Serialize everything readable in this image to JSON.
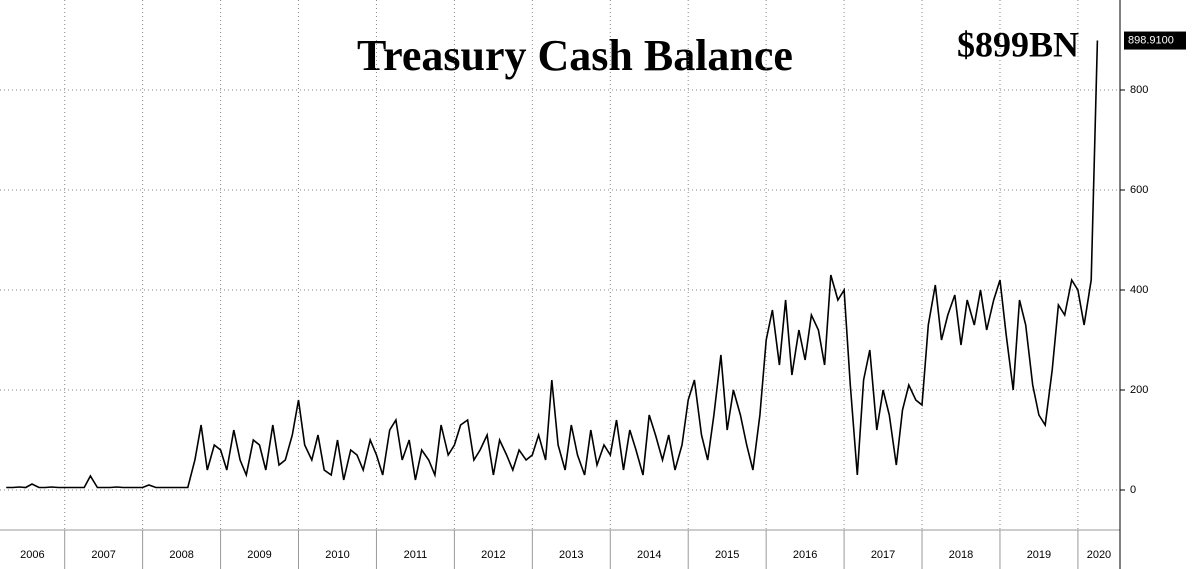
{
  "chart_data": {
    "type": "line",
    "title": "Treasury Cash Balance",
    "annotations": [
      "$899BN"
    ],
    "last_value_label": "898.9100",
    "color": "#000000",
    "grid": true,
    "x": [
      2006.25,
      2006.33,
      2006.42,
      2006.5,
      2006.58,
      2006.67,
      2006.75,
      2006.83,
      2006.92,
      2007,
      2007.08,
      2007.17,
      2007.25,
      2007.33,
      2007.42,
      2007.5,
      2007.58,
      2007.67,
      2007.75,
      2007.83,
      2007.92,
      2008,
      2008.08,
      2008.17,
      2008.25,
      2008.33,
      2008.42,
      2008.5,
      2008.58,
      2008.67,
      2008.75,
      2008.83,
      2008.92,
      2009,
      2009.08,
      2009.17,
      2009.25,
      2009.33,
      2009.42,
      2009.5,
      2009.58,
      2009.67,
      2009.75,
      2009.83,
      2009.92,
      2010,
      2010.08,
      2010.17,
      2010.25,
      2010.33,
      2010.42,
      2010.5,
      2010.58,
      2010.67,
      2010.75,
      2010.83,
      2010.92,
      2011,
      2011.08,
      2011.17,
      2011.25,
      2011.33,
      2011.42,
      2011.5,
      2011.58,
      2011.67,
      2011.75,
      2011.83,
      2011.92,
      2012,
      2012.08,
      2012.17,
      2012.25,
      2012.33,
      2012.42,
      2012.5,
      2012.58,
      2012.67,
      2012.75,
      2012.83,
      2012.92,
      2013,
      2013.08,
      2013.17,
      2013.25,
      2013.33,
      2013.42,
      2013.5,
      2013.58,
      2013.67,
      2013.75,
      2013.83,
      2013.92,
      2014,
      2014.08,
      2014.17,
      2014.25,
      2014.33,
      2014.42,
      2014.5,
      2014.58,
      2014.67,
      2014.75,
      2014.83,
      2014.92,
      2015,
      2015.08,
      2015.17,
      2015.25,
      2015.33,
      2015.42,
      2015.5,
      2015.58,
      2015.67,
      2015.75,
      2015.83,
      2015.92,
      2016,
      2016.08,
      2016.17,
      2016.25,
      2016.33,
      2016.42,
      2016.5,
      2016.58,
      2016.67,
      2016.75,
      2016.83,
      2016.92,
      2017,
      2017.08,
      2017.17,
      2017.25,
      2017.33,
      2017.42,
      2017.5,
      2017.58,
      2017.67,
      2017.75,
      2017.83,
      2017.92,
      2018,
      2018.08,
      2018.17,
      2018.25,
      2018.33,
      2018.42,
      2018.5,
      2018.58,
      2018.67,
      2018.75,
      2018.83,
      2018.92,
      2019,
      2019.08,
      2019.17,
      2019.25,
      2019.33,
      2019.42,
      2019.5,
      2019.58,
      2019.67,
      2019.75,
      2019.83,
      2019.92,
      2020,
      2020.08,
      2020.17,
      2020.25
    ],
    "values": [
      5,
      5,
      6,
      5,
      12,
      5,
      5,
      6,
      5,
      5,
      5,
      5,
      5,
      28,
      5,
      5,
      5,
      6,
      5,
      5,
      5,
      5,
      10,
      5,
      5,
      5,
      5,
      5,
      5,
      60,
      130,
      40,
      90,
      80,
      40,
      120,
      60,
      30,
      100,
      90,
      40,
      130,
      50,
      60,
      110,
      180,
      90,
      60,
      110,
      40,
      30,
      100,
      20,
      80,
      70,
      40,
      100,
      70,
      30,
      120,
      140,
      60,
      100,
      20,
      80,
      60,
      30,
      130,
      70,
      90,
      130,
      140,
      60,
      80,
      110,
      30,
      100,
      70,
      40,
      80,
      60,
      70,
      110,
      60,
      220,
      90,
      40,
      130,
      70,
      30,
      120,
      50,
      90,
      70,
      140,
      40,
      120,
      80,
      30,
      150,
      110,
      60,
      110,
      40,
      90,
      180,
      220,
      110,
      60,
      150,
      270,
      120,
      200,
      150,
      90,
      40,
      150,
      300,
      360,
      250,
      380,
      230,
      320,
      260,
      350,
      320,
      250,
      430,
      380,
      400,
      210,
      30,
      220,
      280,
      120,
      200,
      150,
      50,
      160,
      210,
      180,
      170,
      330,
      410,
      300,
      350,
      390,
      290,
      380,
      330,
      400,
      320,
      380,
      420,
      310,
      200,
      380,
      330,
      210,
      150,
      130,
      240,
      370,
      350,
      420,
      400,
      330,
      420,
      898.91
    ],
    "xlim": [
      2006.17,
      2020.54
    ],
    "xticks": [
      2006,
      2007,
      2008,
      2009,
      2010,
      2011,
      2012,
      2013,
      2014,
      2015,
      2016,
      2017,
      2018,
      2019,
      2020
    ],
    "ylim": [
      -80,
      980
    ],
    "yticks": [
      0,
      200,
      400,
      600,
      800
    ]
  }
}
